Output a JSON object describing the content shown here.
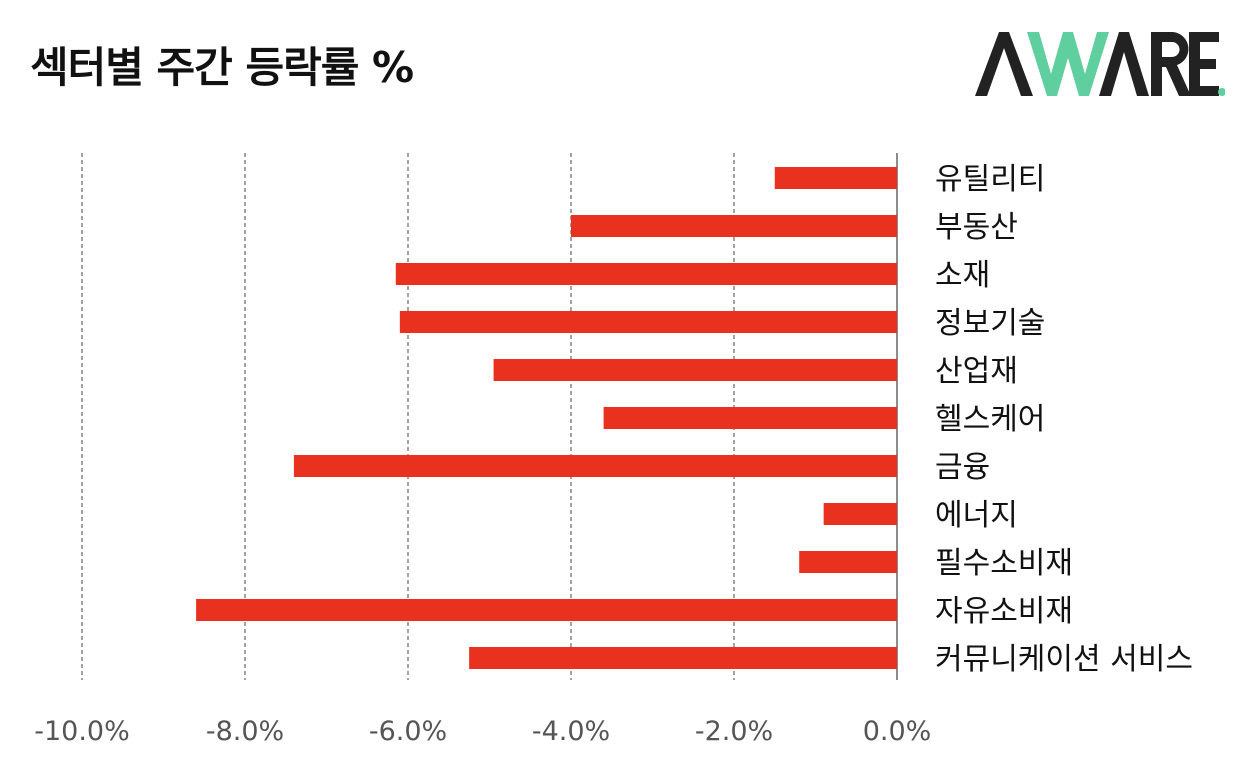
{
  "title": "섹터별 주간 등락률 %",
  "logo": {
    "text": "AWARE",
    "dot_color": "#5fcf9f",
    "dark_color": "#222222",
    "accent_color": "#5fcf9f"
  },
  "colors": {
    "bar": "#e8321f",
    "grid": "#666666",
    "axis": "#666666"
  },
  "chart_data": {
    "type": "bar",
    "orientation": "horizontal",
    "title": "섹터별 주간 등락률 %",
    "categories": [
      "유틸리티",
      "부동산",
      "소재",
      "정보기술",
      "산업재",
      "헬스케어",
      "금융",
      "에너지",
      "필수소비재",
      "자유소비재",
      "커뮤니케이션 서비스"
    ],
    "values": [
      -1.5,
      -4.0,
      -6.15,
      -6.1,
      -4.95,
      -3.6,
      -7.4,
      -0.9,
      -1.2,
      -8.6,
      -5.25
    ],
    "xlim": [
      -10,
      0
    ],
    "ticks": [
      -10,
      -8,
      -6,
      -4,
      -2,
      0
    ],
    "tick_labels": [
      "-10.0%",
      "-8.0%",
      "-6.0%",
      "-4.0%",
      "-2.0%",
      "0.0%"
    ],
    "grid": "vertical-dashed",
    "legend": "none",
    "category_labels_side": "right"
  }
}
